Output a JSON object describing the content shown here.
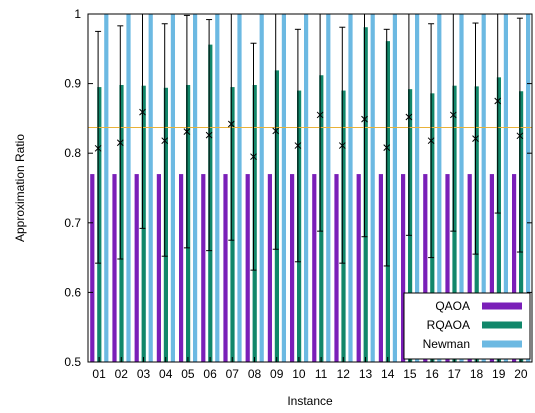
{
  "chart_data": {
    "type": "bar",
    "xlabel": "Instance",
    "ylabel": "Approximation Ratio",
    "ylim": [
      0.5,
      1.0
    ],
    "yticks": [
      0.5,
      0.6,
      0.7,
      0.8,
      0.9,
      1.0
    ],
    "ytick_labels": [
      "0.5",
      "0.6",
      "0.7",
      "0.8",
      "0.9",
      "1"
    ],
    "categories": [
      "01",
      "02",
      "03",
      "04",
      "05",
      "06",
      "07",
      "08",
      "09",
      "10",
      "11",
      "12",
      "13",
      "14",
      "15",
      "16",
      "17",
      "18",
      "19",
      "20"
    ],
    "series": [
      {
        "name": "QAOA",
        "color": "#7a1fb8",
        "values": [
          0.77,
          0.77,
          0.77,
          0.77,
          0.77,
          0.77,
          0.77,
          0.77,
          0.77,
          0.77,
          0.77,
          0.77,
          0.77,
          0.77,
          0.77,
          0.77,
          0.77,
          0.77,
          0.77,
          0.77
        ]
      },
      {
        "name": "RQAOA",
        "color": "#11876a",
        "values": [
          0.895,
          0.898,
          0.897,
          0.894,
          0.898,
          0.956,
          0.895,
          0.898,
          0.919,
          0.89,
          0.912,
          0.89,
          0.981,
          0.961,
          0.892,
          0.886,
          0.897,
          0.896,
          0.909,
          0.889
        ]
      },
      {
        "name": "Newman",
        "color": "#6cb9e2",
        "values": [
          1,
          1,
          1,
          1,
          1,
          1,
          1,
          1,
          1,
          1,
          1,
          1,
          1,
          1,
          1,
          1,
          1,
          1,
          1,
          1
        ]
      }
    ],
    "errorbars": {
      "mean": [
        0.807,
        0.815,
        0.859,
        0.818,
        0.831,
        0.826,
        0.842,
        0.795,
        0.832,
        0.811,
        0.855,
        0.811,
        0.849,
        0.808,
        0.852,
        0.818,
        0.855,
        0.821,
        0.875,
        0.825
      ],
      "lower": [
        0.642,
        0.648,
        0.692,
        0.652,
        0.664,
        0.66,
        0.675,
        0.632,
        0.662,
        0.644,
        0.688,
        0.642,
        0.68,
        0.638,
        0.682,
        0.65,
        0.688,
        0.655,
        0.714,
        0.658
      ],
      "upper": [
        0.975,
        0.983,
        1.0,
        0.986,
        0.998,
        0.992,
        1.0,
        0.958,
        1.0,
        0.978,
        1.0,
        0.981,
        1.0,
        0.978,
        1.0,
        0.986,
        1.0,
        0.987,
        1.0,
        0.994
      ]
    },
    "reference_line": {
      "y": 0.837,
      "color": "#e8b23a"
    },
    "legend": {
      "placement": "bottom-right",
      "entries": [
        "QAOA",
        "RQAOA",
        "Newman"
      ]
    },
    "grid": false
  }
}
